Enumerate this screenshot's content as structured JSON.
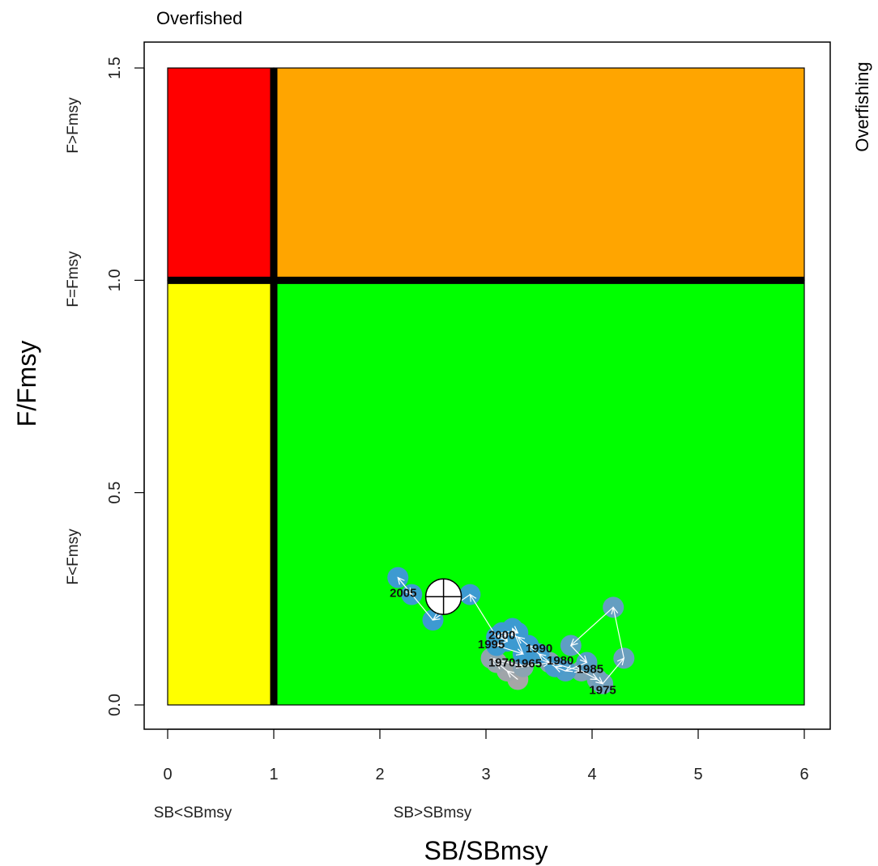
{
  "chart_data": {
    "type": "scatter",
    "title": "",
    "xlabel": "SB/SBmsy",
    "ylabel": "F/Fmsy",
    "xlim": [
      0,
      6
    ],
    "ylim": [
      0,
      1.5
    ],
    "x_ticks": [
      "0",
      "1",
      "2",
      "3",
      "4",
      "5",
      "6"
    ],
    "y_ticks": [
      "0.0",
      "0.5",
      "1.0",
      "1.5"
    ],
    "x_zone_labels": [
      "SB<SBmsy",
      "SB>SBmsy"
    ],
    "y_zone_labels": [
      "F>Fmsy",
      "F=Fmsy",
      "F<Fmsy"
    ],
    "corner_labels": {
      "top": "Overfished",
      "right": "Overfishing"
    },
    "reference_lines": {
      "x": 1,
      "y": 1
    },
    "zones": [
      {
        "name": "overfished-and-overfishing",
        "x": [
          0,
          1
        ],
        "y": [
          1,
          1.5
        ],
        "color": "#ff0000"
      },
      {
        "name": "overfishing",
        "x": [
          1,
          6
        ],
        "y": [
          1,
          1.5
        ],
        "color": "#ffa500"
      },
      {
        "name": "overfished",
        "x": [
          0,
          1
        ],
        "y": [
          0,
          1
        ],
        "color": "#ffff00"
      },
      {
        "name": "healthy",
        "x": [
          1,
          6
        ],
        "y": [
          0,
          1
        ],
        "color": "#00ff00"
      }
    ],
    "trajectory": [
      [
        3.3,
        0.06
      ],
      [
        3.2,
        0.08
      ],
      [
        3.1,
        0.1
      ],
      [
        3.05,
        0.11
      ],
      [
        3.35,
        0.09
      ],
      [
        3.6,
        0.1
      ],
      [
        3.9,
        0.08
      ],
      [
        4.05,
        0.06
      ],
      [
        4.1,
        0.05
      ],
      [
        4.3,
        0.11
      ],
      [
        4.2,
        0.23
      ],
      [
        3.8,
        0.14
      ],
      [
        3.95,
        0.1
      ],
      [
        3.75,
        0.08
      ],
      [
        3.65,
        0.09
      ],
      [
        3.5,
        0.12
      ],
      [
        3.4,
        0.14
      ],
      [
        3.3,
        0.16
      ],
      [
        3.15,
        0.17
      ],
      [
        3.2,
        0.15
      ],
      [
        3.1,
        0.14
      ],
      [
        3.35,
        0.12
      ],
      [
        3.25,
        0.18
      ],
      [
        3.3,
        0.17
      ],
      [
        3.1,
        0.16
      ],
      [
        2.85,
        0.26
      ],
      [
        2.5,
        0.2
      ],
      [
        2.17,
        0.3
      ],
      [
        2.3,
        0.26
      ]
    ],
    "year_labels": [
      {
        "text": "2005",
        "x": 2.22,
        "y": 0.264
      },
      {
        "text": "2000",
        "x": 3.15,
        "y": 0.165
      },
      {
        "text": "1995",
        "x": 3.05,
        "y": 0.143
      },
      {
        "text": "1990",
        "x": 3.5,
        "y": 0.133
      },
      {
        "text": "1980",
        "x": 3.7,
        "y": 0.105
      },
      {
        "text": "1970",
        "x": 3.15,
        "y": 0.1
      },
      {
        "text": "1965",
        "x": 3.4,
        "y": 0.098
      },
      {
        "text": "1985",
        "x": 3.98,
        "y": 0.085
      },
      {
        "text": "1975",
        "x": 4.1,
        "y": 0.035
      }
    ],
    "current_point": {
      "x": 2.6,
      "y": 0.255
    },
    "colors": {
      "point_recent": "#3d9ad1",
      "point_old": "#a6a6a6",
      "arrow": "#ffffff",
      "current_fill": "#ffffff",
      "line": "#000000"
    }
  }
}
